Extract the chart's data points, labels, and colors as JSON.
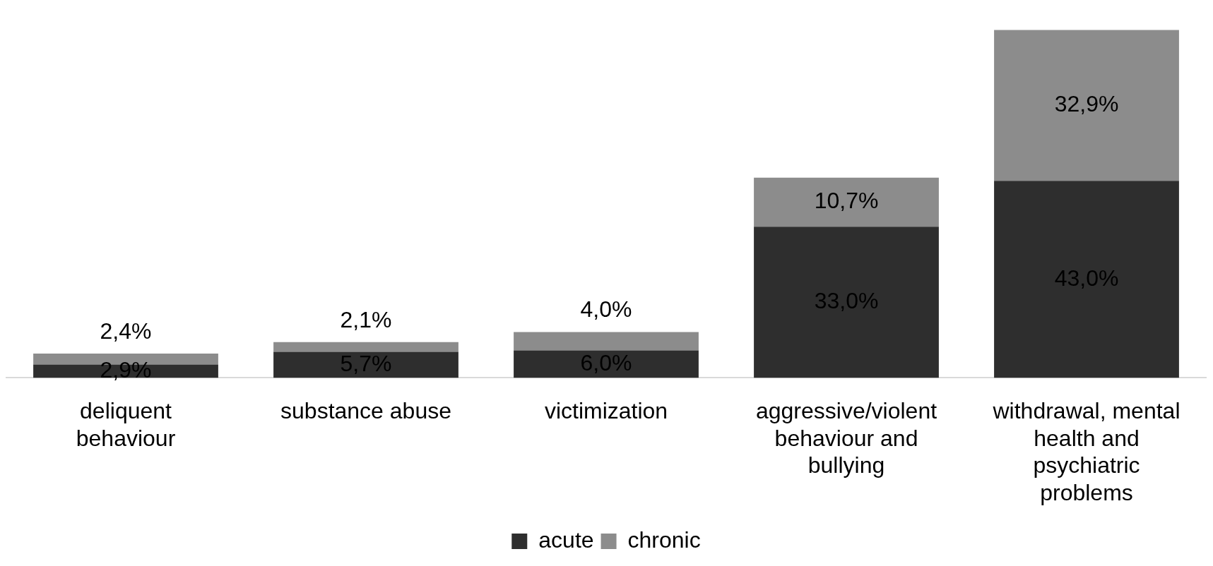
{
  "chart_data": {
    "type": "bar",
    "stacked": true,
    "categories": [
      "deliquent behaviour",
      "substance abuse",
      "victimization",
      "aggressive/violent behaviour and bullying",
      "withdrawal, mental health and psychiatric problems"
    ],
    "series": [
      {
        "name": "acute",
        "color": "#2e2e2e",
        "values": [
          2.9,
          5.7,
          6.0,
          33.0,
          43.0
        ],
        "value_labels": [
          "2,9%",
          "5,7%",
          "6,0%",
          "33,0%",
          "43,0%"
        ]
      },
      {
        "name": "chronic",
        "color": "#8c8c8c",
        "values": [
          2.4,
          2.1,
          4.0,
          10.7,
          32.9
        ],
        "value_labels": [
          "2,4%",
          "2,1%",
          "4,0%",
          "10,7%",
          "32,9%"
        ]
      }
    ],
    "legend": "bottom"
  }
}
